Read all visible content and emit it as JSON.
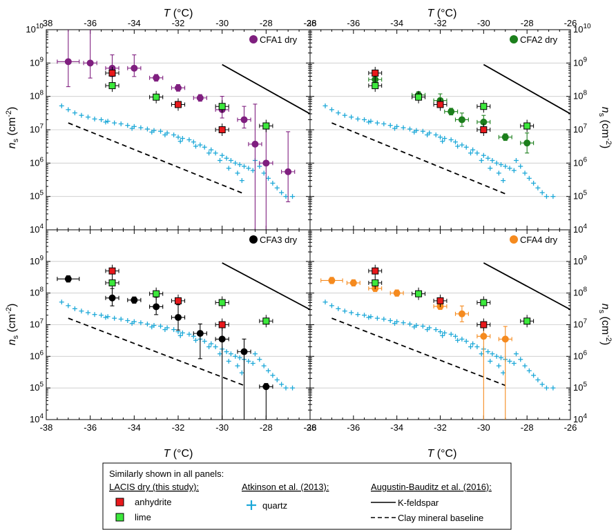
{
  "axis_labels": {
    "x_italic": "T",
    "x_unit": " (°C)",
    "y_italic": "n",
    "y_sub": "s",
    "y_unit_base": " (cm",
    "y_unit_sup": "-2",
    "y_unit_close": ")"
  },
  "legend": {
    "header": "Similarly shown in all panels:",
    "groups": [
      {
        "title": "LACIS dry (this study):",
        "items": [
          "anhydrite",
          "lime"
        ]
      },
      {
        "title": "Atkinson et al. (2013):",
        "items": [
          "quartz"
        ]
      },
      {
        "title": "Augustin-Bauditz et al. (2016):",
        "items": [
          "K-feldspar",
          "Clay mineral baseline"
        ]
      }
    ]
  },
  "colors": {
    "anhydrite": "#e8191c",
    "lime": "#3ce83c",
    "quartz": "#1ca8d8",
    "CFA1": "#7f1f7f",
    "CFA2": "#1c7f1c",
    "CFA3": "#000000",
    "CFA4": "#f58a1e",
    "lines": "#000000"
  },
  "chart_data": {
    "type": "scatter",
    "xlim": [
      -38,
      -26
    ],
    "ylim": [
      10000,
      10000000000
    ],
    "y_scale": "log",
    "x_ticks": [
      -38,
      -36,
      -34,
      -32,
      -30,
      -28,
      -26
    ],
    "y_ticks_exponents": [
      4,
      5,
      6,
      7,
      8,
      9,
      10
    ],
    "grid": "horizontal at decades",
    "shared_series": {
      "anhydrite": [
        [
          -35,
          500000000
        ],
        [
          -32,
          57000000
        ],
        [
          -30,
          10000000
        ]
      ],
      "lime": [
        [
          -35,
          210000000
        ],
        [
          -33,
          95000000
        ],
        [
          -30,
          50000000
        ],
        [
          -28,
          13000000
        ]
      ],
      "k_feldspar": [
        [
          -30,
          900000000
        ],
        [
          -26,
          30000000
        ]
      ],
      "clay_baseline": [
        [
          -37,
          16000000
        ],
        [
          -29,
          120000
        ]
      ],
      "quartz": [
        [
          -37.3,
          52000000
        ],
        [
          -37,
          40000000
        ],
        [
          -36.7,
          32000000
        ],
        [
          -36.4,
          27000000
        ],
        [
          -36.1,
          24000000
        ],
        [
          -35.8,
          21000000
        ],
        [
          -35.5,
          20000000
        ],
        [
          -35.2,
          18000000
        ],
        [
          -34.9,
          16000000
        ],
        [
          -34.6,
          15000000
        ],
        [
          -34.3,
          13500000
        ],
        [
          -34,
          12500000
        ],
        [
          -33.7,
          11500000
        ],
        [
          -33.4,
          10500000
        ],
        [
          -33.1,
          9500000
        ],
        [
          -32.8,
          9000000
        ],
        [
          -32.5,
          8000000
        ],
        [
          -32.2,
          7000000
        ],
        [
          -32,
          6000000
        ],
        [
          -31.8,
          5500000
        ],
        [
          -31.5,
          5000000
        ],
        [
          -31.3,
          4300000
        ],
        [
          -31,
          3500000
        ],
        [
          -30.8,
          3000000
        ],
        [
          -30.5,
          2500000
        ],
        [
          -30.3,
          2000000
        ],
        [
          -30,
          1700000
        ],
        [
          -29.8,
          1400000
        ],
        [
          -29.6,
          1200000
        ],
        [
          -29.4,
          1000000
        ],
        [
          -29.2,
          900000
        ],
        [
          -29,
          800000
        ],
        [
          -28.8,
          700000
        ],
        [
          -28.6,
          600000
        ],
        [
          -28.5,
          1200000
        ],
        [
          -28.3,
          800000
        ],
        [
          -28.1,
          500000
        ],
        [
          -27.9,
          350000
        ],
        [
          -27.7,
          250000
        ],
        [
          -27.5,
          180000
        ],
        [
          -27.3,
          130000
        ],
        [
          -27.1,
          100000
        ],
        [
          -26.8,
          100000
        ],
        [
          -35.3,
          17000000
        ],
        [
          -34.1,
          11000000
        ],
        [
          -33.2,
          8500000
        ],
        [
          -32.6,
          7000000
        ],
        [
          -31.9,
          4500000
        ],
        [
          -31.2,
          3200000
        ],
        [
          -30.6,
          2000000
        ],
        [
          -30.1,
          1200000
        ],
        [
          -29.7,
          700000
        ],
        [
          -29.3,
          500000
        ],
        [
          -29.1,
          300000
        ]
      ]
    },
    "panels": [
      {
        "label": "CFA1 dry",
        "color_key": "CFA1",
        "points": [
          [
            -37,
            1100000000,
            0.5,
            0.75,
            2
          ],
          [
            -36,
            1000000000,
            0.3,
            0.45,
            1.2
          ],
          [
            -35,
            700000000,
            0.3,
            0.25,
            0.4
          ],
          [
            -34,
            700000000,
            0.3,
            0.25,
            0.4
          ],
          [
            -33,
            360000000,
            0.3,
            0.1,
            0.1
          ],
          [
            -32,
            180000000,
            0.3,
            0.1,
            0.1
          ],
          [
            -31,
            90000000,
            0.3,
            0.1,
            0.1
          ],
          [
            -30,
            40000000,
            0.3,
            0.25,
            0.4
          ],
          [
            -29,
            20000000,
            0.3,
            0.25,
            0.4
          ],
          [
            -28.5,
            3700000,
            0.3,
            6,
            1.2
          ],
          [
            -28,
            1000000,
            0.3,
            6,
            1.2
          ],
          [
            -27,
            550000,
            0.3,
            0.9,
            1.2
          ]
        ]
      },
      {
        "label": "CFA2 dry",
        "color_key": "CFA2",
        "points": [
          [
            -35,
            320000000,
            0.3,
            0.2,
            0.2
          ],
          [
            -33,
            110000000,
            0.3,
            0.1,
            0.1
          ],
          [
            -32,
            75000000,
            0.3,
            0.2,
            0.2
          ],
          [
            -31.5,
            35000000,
            0.3,
            0.1,
            0.1
          ],
          [
            -31,
            20000000,
            0.3,
            0.2,
            0.2
          ],
          [
            -30,
            17000000,
            0.3,
            0.2,
            0.2
          ],
          [
            -29,
            6000000,
            0.3,
            0.1,
            0.1
          ],
          [
            -28,
            4000000,
            0.3,
            0.3,
            0.3
          ]
        ]
      },
      {
        "label": "CFA3 dry",
        "color_key": "CFA3",
        "points": [
          [
            -37,
            280000000,
            0.5,
            0.1,
            0.1
          ],
          [
            -35,
            70000000,
            0.3,
            0.25,
            0.3
          ],
          [
            -34,
            60000000,
            0.3,
            0.1,
            0.1
          ],
          [
            -33,
            37000000,
            0.3,
            0.25,
            0.3
          ],
          [
            -32,
            17000000,
            0.3,
            0.4,
            0.4
          ],
          [
            -31,
            5300000,
            0.3,
            0.8,
            0.3
          ],
          [
            -30,
            3500000,
            0.3,
            5,
            0.4
          ],
          [
            -29,
            1400000,
            0.3,
            5,
            0.4
          ],
          [
            -28,
            110000,
            0.3,
            5,
            0.1
          ]
        ]
      },
      {
        "label": "CFA4 dry",
        "color_key": "CFA4",
        "points": [
          [
            -37,
            250000000,
            0.5,
            0.1,
            0.1
          ],
          [
            -36,
            210000000,
            0.3,
            0.1,
            0.1
          ],
          [
            -35,
            140000000,
            0.3,
            0.1,
            0.1
          ],
          [
            -34,
            100000000,
            0.3,
            0.1,
            0.1
          ],
          [
            -32,
            38000000,
            0.3,
            0.1,
            0.1
          ],
          [
            -31,
            22000000,
            0.3,
            0.25,
            0.25
          ],
          [
            -30,
            4300000,
            0.3,
            5,
            0.4
          ],
          [
            -29,
            3500000,
            0.3,
            5,
            0.4
          ]
        ]
      }
    ]
  }
}
